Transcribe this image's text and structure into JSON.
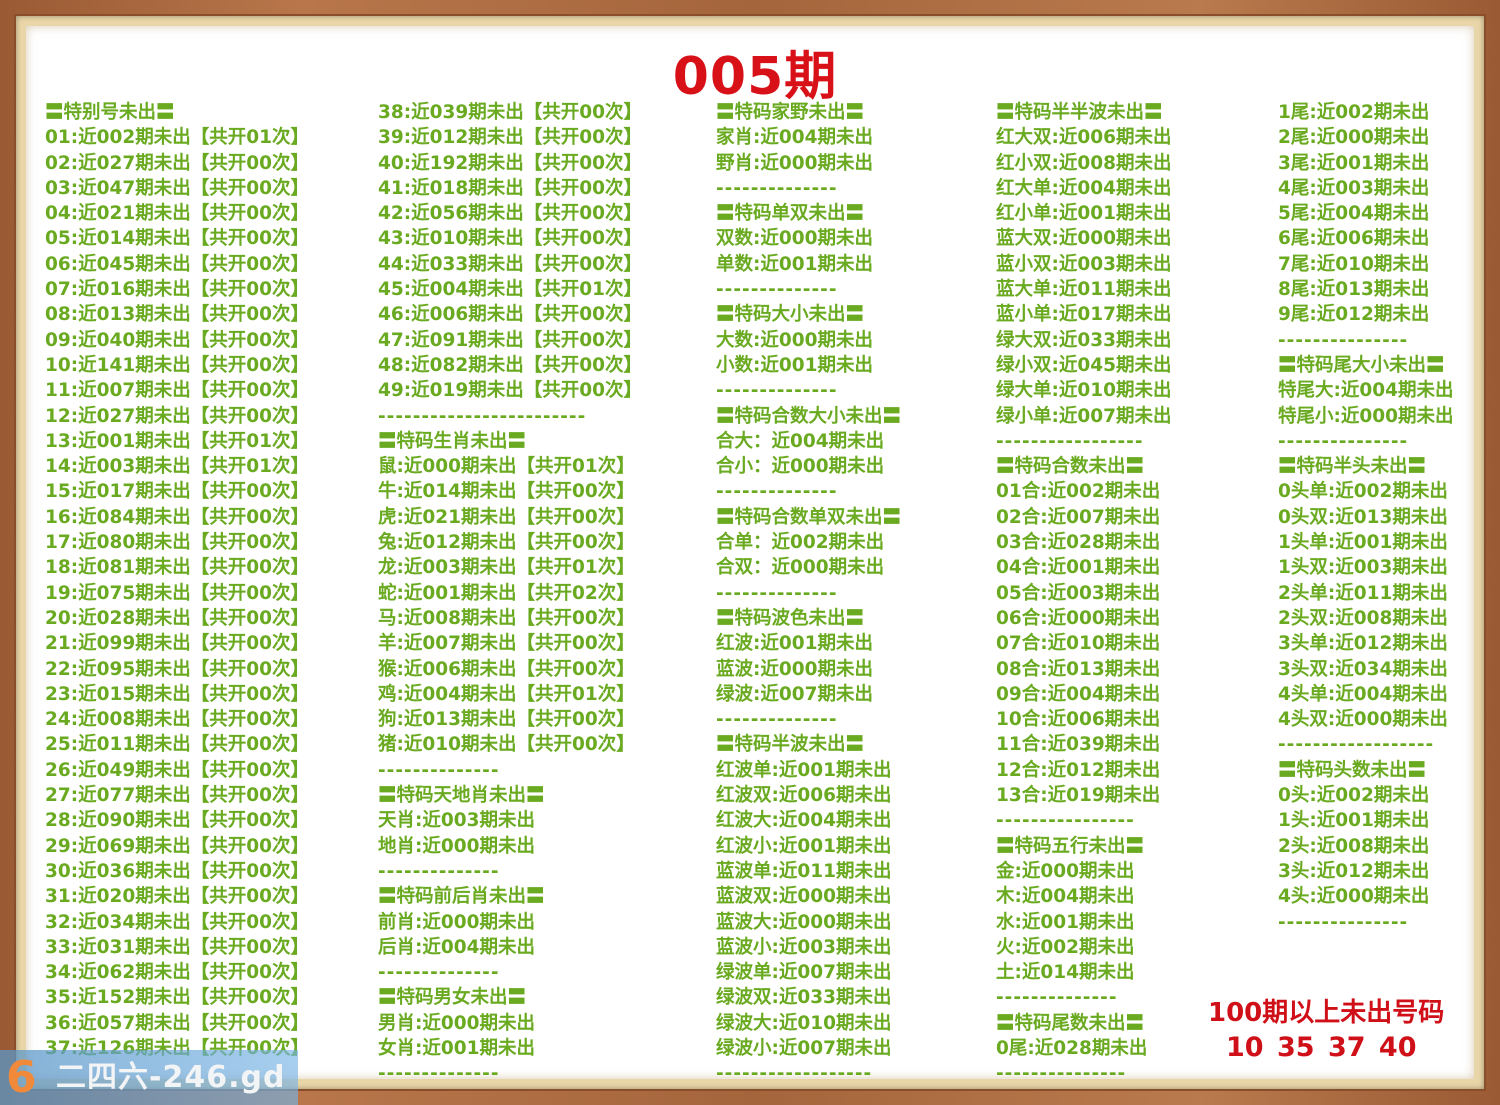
{
  "title": "005期",
  "columns": [
    [
      "〓特别号未出〓",
      "01:近002期未出【共开01次】",
      "02:近027期未出【共开00次】",
      "03:近047期未出【共开00次】",
      "04:近021期未出【共开00次】",
      "05:近014期未出【共开00次】",
      "06:近045期未出【共开00次】",
      "07:近016期未出【共开00次】",
      "08:近013期未出【共开00次】",
      "09:近040期未出【共开00次】",
      "10:近141期未出【共开00次】",
      "11:近007期未出【共开00次】",
      "12:近027期未出【共开00次】",
      "13:近001期未出【共开01次】",
      "14:近003期未出【共开01次】",
      "15:近017期未出【共开00次】",
      "16:近084期未出【共开00次】",
      "17:近080期未出【共开00次】",
      "18:近081期未出【共开00次】",
      "19:近075期未出【共开00次】",
      "20:近028期未出【共开00次】",
      "21:近099期未出【共开00次】",
      "22:近095期未出【共开00次】",
      "23:近015期未出【共开00次】",
      "24:近008期未出【共开00次】",
      "25:近011期未出【共开00次】",
      "26:近049期未出【共开00次】",
      "27:近077期未出【共开00次】",
      "28:近090期未出【共开00次】",
      "29:近069期未出【共开00次】",
      "30:近036期未出【共开00次】",
      "31:近020期未出【共开00次】",
      "32:近034期未出【共开00次】",
      "33:近031期未出【共开00次】",
      "34:近062期未出【共开00次】",
      "35:近152期未出【共开00次】",
      "36:近057期未出【共开00次】",
      "37:近126期未出【共开00次】"
    ],
    [
      "38:近039期未出【共开00次】",
      "39:近012期未出【共开00次】",
      "40:近192期未出【共开00次】",
      "41:近018期未出【共开00次】",
      "42:近056期未出【共开00次】",
      "43:近010期未出【共开00次】",
      "44:近033期未出【共开00次】",
      "45:近004期未出【共开01次】",
      "46:近006期未出【共开00次】",
      "47:近091期未出【共开00次】",
      "48:近082期未出【共开00次】",
      "49:近019期未出【共开00次】",
      "------------------------",
      "〓特码生肖未出〓",
      "鼠:近000期未出【共开01次】",
      "牛:近014期未出【共开00次】",
      "虎:近021期未出【共开00次】",
      "兔:近012期未出【共开00次】",
      "龙:近003期未出【共开01次】",
      "蛇:近001期未出【共开02次】",
      "马:近008期未出【共开00次】",
      "羊:近007期未出【共开00次】",
      "猴:近006期未出【共开00次】",
      "鸡:近004期未出【共开01次】",
      "狗:近013期未出【共开00次】",
      "猪:近010期未出【共开00次】",
      "--------------",
      "〓特码天地肖未出〓",
      "天肖:近003期未出",
      "地肖:近000期未出",
      "--------------",
      "〓特码前后肖未出〓",
      "前肖:近000期未出",
      "后肖:近004期未出",
      "--------------",
      "〓特码男女未出〓",
      "男肖:近000期未出",
      "女肖:近001期未出",
      "--------------"
    ],
    [
      "〓特码家野未出〓",
      "家肖:近004期未出",
      "野肖:近000期未出",
      "--------------",
      "〓特码单双未出〓",
      "双数:近000期未出",
      "单数:近001期未出",
      "--------------",
      "〓特码大小未出〓",
      "大数:近000期未出",
      "小数:近001期未出",
      "--------------",
      "〓特码合数大小未出〓",
      "合大：近004期未出",
      "合小：近000期未出",
      "--------------",
      "〓特码合数单双未出〓",
      "合单：近002期未出",
      "合双：近000期未出",
      "--------------",
      "〓特码波色未出〓",
      "红波:近001期未出",
      "蓝波:近000期未出",
      "绿波:近007期未出",
      "--------------",
      "〓特码半波未出〓",
      "红波单:近001期未出",
      "红波双:近006期未出",
      "红波大:近004期未出",
      "红波小:近001期未出",
      "蓝波单:近011期未出",
      "蓝波双:近000期未出",
      "蓝波大:近000期未出",
      "蓝波小:近003期未出",
      "绿波单:近007期未出",
      "绿波双:近033期未出",
      "绿波大:近010期未出",
      "绿波小:近007期未出",
      "------------------"
    ],
    [
      "〓特码半半波未出〓",
      "红大双:近006期未出",
      "红小双:近008期未出",
      "红大单:近004期未出",
      "红小单:近001期未出",
      "蓝大双:近000期未出",
      "蓝小双:近003期未出",
      "蓝大单:近011期未出",
      "蓝小单:近017期未出",
      "绿大双:近033期未出",
      "绿小双:近045期未出",
      "绿大单:近010期未出",
      "绿小单:近007期未出",
      "-----------------",
      "〓特码合数未出〓",
      "01合:近002期未出",
      "02合:近007期未出",
      "03合:近028期未出",
      "04合:近001期未出",
      "05合:近003期未出",
      "06合:近000期未出",
      "07合:近010期未出",
      "08合:近013期未出",
      "09合:近004期未出",
      "10合:近006期未出",
      "11合:近039期未出",
      "12合:近012期未出",
      "13合:近019期未出",
      "----------------",
      "〓特码五行未出〓",
      "金:近000期未出",
      "木:近004期未出",
      "水:近001期未出",
      "火:近002期未出",
      "土:近014期未出",
      "--------------",
      "〓特码尾数未出〓",
      "0尾:近028期未出",
      "---------------"
    ],
    [
      "1尾:近002期未出",
      "2尾:近000期未出",
      "3尾:近001期未出",
      "4尾:近003期未出",
      "5尾:近004期未出",
      "6尾:近006期未出",
      "7尾:近010期未出",
      "8尾:近013期未出",
      "9尾:近012期未出",
      "---------------",
      "〓特码尾大小未出〓",
      "特尾大:近004期未出",
      "特尾小:近000期未出",
      "---------------",
      "〓特码半头未出〓",
      "0头单:近002期未出",
      "0头双:近013期未出",
      "1头单:近001期未出",
      "1头双:近003期未出",
      "2头单:近011期未出",
      "2头双:近008期未出",
      "3头单:近012期未出",
      "3头双:近034期未出",
      "4头单:近004期未出",
      "4头双:近000期未出",
      "------------------",
      "〓特码头数未出〓",
      "0头:近002期未出",
      "1头:近001期未出",
      "2头:近008期未出",
      "3头:近012期未出",
      "4头:近000期未出",
      "---------------"
    ]
  ],
  "over100": {
    "title": "100期以上未出号码",
    "numbers": "10 35 37 40"
  },
  "watermark": {
    "logo": "6",
    "text": "二四六-246.gd"
  },
  "colors": {
    "text_green": "#6aaa20",
    "title_red": "#d81018",
    "frame_wood": "#a5653c"
  }
}
